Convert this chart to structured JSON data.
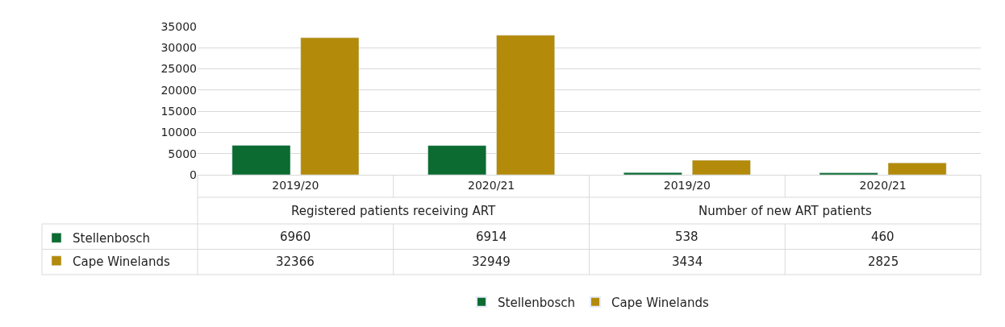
{
  "chart_data": {
    "type": "bar",
    "categories": [
      "2019/20",
      "2020/21",
      "2019/20",
      "2020/21"
    ],
    "series": [
      {
        "name": "Stellenbosch",
        "color": "#0b6b30",
        "values": [
          6960,
          6914,
          538,
          460
        ]
      },
      {
        "name": "Cape Winelands",
        "color": "#b38a0a",
        "values": [
          32366,
          32949,
          3434,
          2825
        ]
      }
    ],
    "annotations": [
      "Registered patients receiving ART",
      "Number of new ART patients"
    ],
    "ylim": [
      0,
      35000
    ],
    "yticks": [
      0,
      5000,
      10000,
      15000,
      20000,
      25000,
      30000,
      35000
    ],
    "grid": "y",
    "legend": "bottom",
    "data_labels": true
  }
}
